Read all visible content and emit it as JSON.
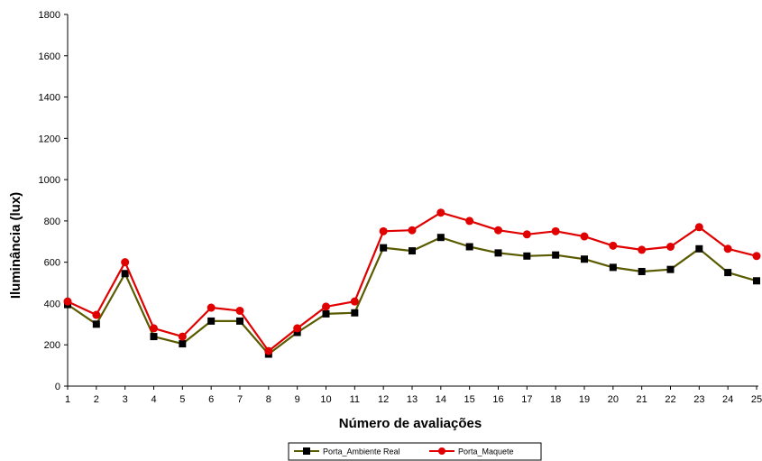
{
  "chart_data": {
    "type": "line",
    "title": "",
    "xlabel": "Número de avaliações",
    "ylabel": "Iluminância (lux)",
    "x": [
      "1",
      "2",
      "3",
      "4",
      "5",
      "6",
      "7",
      "8",
      "9",
      "10",
      "11",
      "12",
      "13",
      "14",
      "15",
      "16",
      "17",
      "18",
      "19",
      "20",
      "21",
      "22",
      "23",
      "24",
      "25"
    ],
    "ylim": [
      0,
      1800
    ],
    "yticks": [
      "0",
      "200",
      "400",
      "600",
      "800",
      "1000",
      "1200",
      "1400",
      "1600",
      "1800"
    ],
    "grid": false,
    "legend_position": "bottom",
    "series": [
      {
        "name": "Porta_Ambiente Real",
        "color": "#000000",
        "line_color": "#5a5a00",
        "marker": "square",
        "values": [
          395,
          300,
          545,
          240,
          205,
          315,
          315,
          155,
          260,
          350,
          355,
          670,
          655,
          720,
          675,
          645,
          630,
          635,
          615,
          575,
          555,
          565,
          665,
          550,
          510
        ]
      },
      {
        "name": "Porta_Maquete",
        "color": "#e00000",
        "line_color": "#e00000",
        "marker": "circle",
        "values": [
          410,
          345,
          600,
          280,
          240,
          380,
          365,
          170,
          280,
          385,
          410,
          750,
          755,
          840,
          800,
          755,
          735,
          750,
          725,
          680,
          660,
          675,
          770,
          665,
          630
        ]
      }
    ]
  }
}
